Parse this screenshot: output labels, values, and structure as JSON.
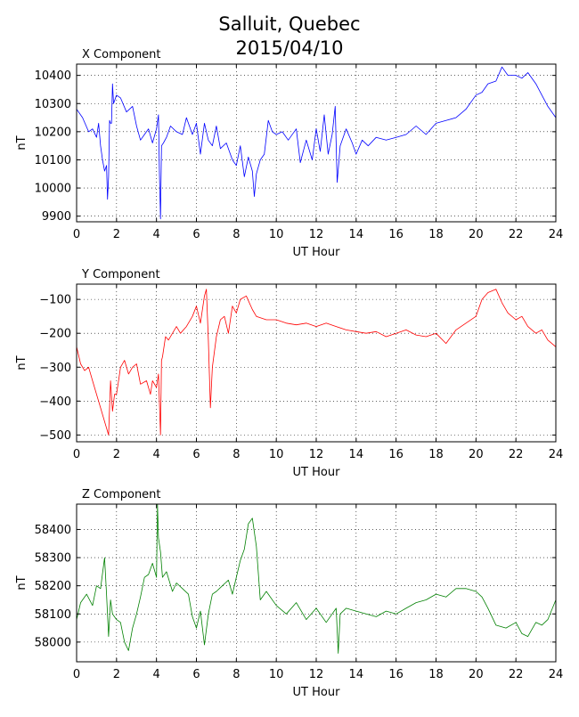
{
  "title_line1": "Salluit, Quebec",
  "title_line2": "2015/04/10",
  "chart_data": [
    {
      "type": "line",
      "title": "X Component",
      "xlabel": "UT Hour",
      "ylabel": "nT",
      "color": "#0000ff",
      "xlim": [
        0,
        24
      ],
      "ylim": [
        9880,
        10440
      ],
      "xticks": [
        0,
        2,
        4,
        6,
        8,
        10,
        12,
        14,
        16,
        18,
        20,
        22,
        24
      ],
      "yticks": [
        9900,
        10000,
        10100,
        10200,
        10300,
        10400
      ],
      "grid": true,
      "x": [
        0,
        0.3,
        0.6,
        0.8,
        1.0,
        1.1,
        1.2,
        1.3,
        1.4,
        1.5,
        1.55,
        1.6,
        1.65,
        1.7,
        1.75,
        1.8,
        1.85,
        2.0,
        2.2,
        2.5,
        2.8,
        3.0,
        3.2,
        3.4,
        3.6,
        3.8,
        4.0,
        4.1,
        4.15,
        4.2,
        4.25,
        4.35,
        4.5,
        4.7,
        5.0,
        5.3,
        5.5,
        5.8,
        6.0,
        6.2,
        6.4,
        6.6,
        6.8,
        7.0,
        7.2,
        7.5,
        7.8,
        8.0,
        8.2,
        8.4,
        8.6,
        8.8,
        8.9,
        9.0,
        9.2,
        9.4,
        9.6,
        9.8,
        10.0,
        10.3,
        10.6,
        11.0,
        11.2,
        11.5,
        11.8,
        12.0,
        12.2,
        12.4,
        12.6,
        12.8,
        12.95,
        13.05,
        13.2,
        13.5,
        13.8,
        14.0,
        14.3,
        14.6,
        15.0,
        15.5,
        16.0,
        16.5,
        17.0,
        17.5,
        18.0,
        18.5,
        19.0,
        19.5,
        20.0,
        20.3,
        20.6,
        21.0,
        21.3,
        21.6,
        22.0,
        22.3,
        22.6,
        23.0,
        23.3,
        23.6,
        24.0
      ],
      "y": [
        10280,
        10250,
        10200,
        10210,
        10180,
        10230,
        10150,
        10100,
        10060,
        10080,
        9960,
        10040,
        10240,
        10230,
        10230,
        10370,
        10300,
        10330,
        10320,
        10270,
        10290,
        10220,
        10170,
        10190,
        10210,
        10160,
        10210,
        10260,
        10050,
        9890,
        10150,
        10160,
        10180,
        10220,
        10200,
        10190,
        10250,
        10190,
        10230,
        10120,
        10230,
        10170,
        10150,
        10220,
        10140,
        10160,
        10100,
        10080,
        10150,
        10040,
        10110,
        10060,
        9970,
        10050,
        10100,
        10120,
        10240,
        10200,
        10190,
        10200,
        10170,
        10210,
        10090,
        10170,
        10100,
        10210,
        10130,
        10260,
        10120,
        10190,
        10290,
        10020,
        10150,
        10210,
        10160,
        10120,
        10170,
        10150,
        10180,
        10170,
        10180,
        10190,
        10220,
        10190,
        10230,
        10240,
        10250,
        10280,
        10330,
        10340,
        10370,
        10380,
        10430,
        10400,
        10400,
        10390,
        10410,
        10370,
        10330,
        10290,
        10250
      ]
    },
    {
      "type": "line",
      "title": "Y Component",
      "xlabel": "UT Hour",
      "ylabel": "nT",
      "color": "#ff0000",
      "xlim": [
        0,
        24
      ],
      "ylim": [
        -520,
        -55
      ],
      "xticks": [
        0,
        2,
        4,
        6,
        8,
        10,
        12,
        14,
        16,
        18,
        20,
        22,
        24
      ],
      "yticks": [
        -500,
        -400,
        -300,
        -200,
        -100
      ],
      "grid": true,
      "x": [
        0,
        0.2,
        0.4,
        0.6,
        0.8,
        1.0,
        1.2,
        1.4,
        1.6,
        1.7,
        1.8,
        1.9,
        2.0,
        2.1,
        2.2,
        2.4,
        2.6,
        2.8,
        3.0,
        3.2,
        3.5,
        3.7,
        3.8,
        4.0,
        4.1,
        4.2,
        4.25,
        4.3,
        4.45,
        4.6,
        4.8,
        5.0,
        5.2,
        5.5,
        5.8,
        6.0,
        6.2,
        6.4,
        6.5,
        6.6,
        6.7,
        6.8,
        7.0,
        7.2,
        7.4,
        7.6,
        7.8,
        8.0,
        8.2,
        8.5,
        8.8,
        9.0,
        9.5,
        10.0,
        10.5,
        11.0,
        11.5,
        12.0,
        12.5,
        13.0,
        13.5,
        14.0,
        14.5,
        15.0,
        15.5,
        16.0,
        16.5,
        17.0,
        17.5,
        18.0,
        18.5,
        19.0,
        19.5,
        20.0,
        20.3,
        20.6,
        21.0,
        21.3,
        21.6,
        22.0,
        22.3,
        22.6,
        23.0,
        23.3,
        23.6,
        24.0
      ],
      "y": [
        -240,
        -290,
        -310,
        -300,
        -340,
        -380,
        -420,
        -460,
        -500,
        -340,
        -430,
        -380,
        -380,
        -340,
        -300,
        -280,
        -320,
        -300,
        -290,
        -350,
        -340,
        -380,
        -340,
        -360,
        -320,
        -500,
        -280,
        -270,
        -210,
        -220,
        -200,
        -180,
        -200,
        -180,
        -150,
        -120,
        -170,
        -90,
        -70,
        -220,
        -420,
        -300,
        -210,
        -160,
        -150,
        -200,
        -120,
        -140,
        -100,
        -90,
        -130,
        -150,
        -160,
        -160,
        -170,
        -175,
        -170,
        -180,
        -170,
        -180,
        -190,
        -195,
        -200,
        -195,
        -210,
        -200,
        -190,
        -205,
        -210,
        -200,
        -230,
        -190,
        -170,
        -150,
        -100,
        -80,
        -70,
        -110,
        -140,
        -160,
        -150,
        -180,
        -200,
        -190,
        -220,
        -240
      ]
    },
    {
      "type": "line",
      "title": "Z Component",
      "xlabel": "UT Hour",
      "ylabel": "nT",
      "color": "#008000",
      "xlim": [
        0,
        24
      ],
      "ylim": [
        57930,
        58490
      ],
      "xticks": [
        0,
        2,
        4,
        6,
        8,
        10,
        12,
        14,
        16,
        18,
        20,
        22,
        24
      ],
      "yticks": [
        58000,
        58100,
        58200,
        58300,
        58400
      ],
      "grid": true,
      "x": [
        0,
        0.2,
        0.5,
        0.8,
        1.0,
        1.2,
        1.4,
        1.5,
        1.6,
        1.7,
        1.8,
        2.0,
        2.2,
        2.4,
        2.6,
        2.8,
        3.0,
        3.2,
        3.4,
        3.6,
        3.8,
        4.0,
        4.05,
        4.1,
        4.2,
        4.3,
        4.5,
        4.8,
        5.0,
        5.3,
        5.6,
        5.8,
        6.0,
        6.2,
        6.4,
        6.6,
        6.8,
        7.0,
        7.3,
        7.6,
        7.8,
        8.0,
        8.2,
        8.4,
        8.6,
        8.8,
        9.0,
        9.2,
        9.5,
        10.0,
        10.5,
        11.0,
        11.5,
        12.0,
        12.5,
        13.0,
        13.1,
        13.2,
        13.5,
        14.0,
        14.5,
        15.0,
        15.5,
        16.0,
        16.5,
        17.0,
        17.5,
        18.0,
        18.5,
        19.0,
        19.5,
        20.0,
        20.3,
        20.6,
        21.0,
        21.5,
        22.0,
        22.3,
        22.6,
        23.0,
        23.3,
        23.6,
        24.0
      ],
      "y": [
        58080,
        58140,
        58170,
        58130,
        58200,
        58190,
        58300,
        58170,
        58020,
        58150,
        58100,
        58080,
        58070,
        58000,
        57970,
        58050,
        58100,
        58160,
        58230,
        58240,
        58280,
        58230,
        58490,
        58370,
        58320,
        58230,
        58250,
        58180,
        58210,
        58190,
        58170,
        58090,
        58050,
        58110,
        57990,
        58100,
        58170,
        58180,
        58200,
        58220,
        58170,
        58230,
        58290,
        58330,
        58420,
        58440,
        58340,
        58150,
        58180,
        58130,
        58100,
        58140,
        58080,
        58120,
        58070,
        58120,
        57960,
        58100,
        58120,
        58110,
        58100,
        58090,
        58110,
        58100,
        58120,
        58140,
        58150,
        58170,
        58160,
        58190,
        58190,
        58180,
        58160,
        58120,
        58060,
        58050,
        58070,
        58030,
        58020,
        58070,
        58060,
        58080,
        58150
      ]
    }
  ]
}
